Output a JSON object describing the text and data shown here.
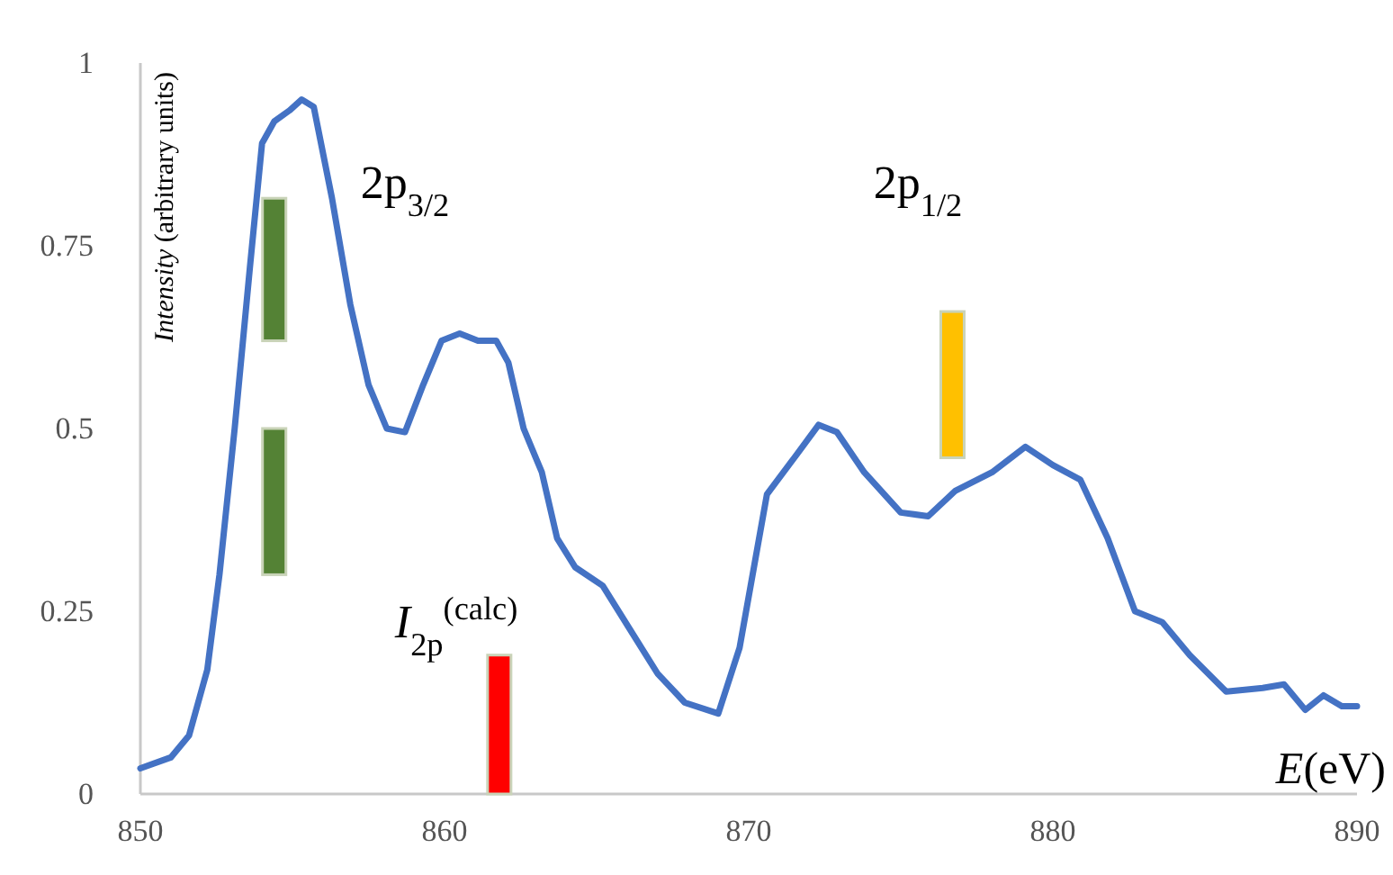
{
  "chart_data": {
    "type": "line",
    "xlabel": "E(eV)",
    "ylabel": "Intensity (arbitrary units)",
    "xlim": [
      850,
      890
    ],
    "xticks": [
      850,
      860,
      870,
      880,
      890
    ],
    "ylim": [
      0,
      1
    ],
    "yticks": [
      0,
      0.25,
      0.5,
      0.75,
      1
    ],
    "grid": false,
    "marker": "none",
    "line_style": "solid",
    "series": [
      {
        "color": "#4472c4",
        "x": [
          850,
          851,
          851.6,
          852.2,
          852.6,
          853.1,
          853.6,
          854.0,
          854.4,
          854.9,
          855.3,
          855.7,
          856.3,
          856.9,
          857.5,
          858.1,
          858.7,
          859.3,
          859.9,
          860.5,
          861.1,
          861.7,
          862.1,
          862.6,
          863.2,
          863.7,
          864.3,
          865.2,
          866.1,
          867.0,
          867.9,
          869.0,
          869.7,
          870.6,
          871.5,
          872.3,
          872.9,
          873.8,
          875.0,
          875.9,
          876.8,
          878.0,
          879.1,
          880.0,
          880.9,
          881.8,
          882.7,
          883.6,
          884.5,
          885.7,
          886.9,
          887.6,
          888.3,
          888.9,
          889.5,
          890
        ],
        "values": [
          0.035,
          0.05,
          0.08,
          0.17,
          0.3,
          0.5,
          0.72,
          0.89,
          0.92,
          0.935,
          0.95,
          0.94,
          0.815,
          0.67,
          0.56,
          0.5,
          0.495,
          0.56,
          0.62,
          0.63,
          0.62,
          0.62,
          0.59,
          0.5,
          0.44,
          0.35,
          0.31,
          0.285,
          0.225,
          0.165,
          0.125,
          0.11,
          0.2,
          0.41,
          0.46,
          0.505,
          0.495,
          0.44,
          0.385,
          0.38,
          0.415,
          0.44,
          0.475,
          0.45,
          0.43,
          0.35,
          0.25,
          0.235,
          0.19,
          0.14,
          0.145,
          0.15,
          0.115,
          0.135,
          0.12,
          0.12
        ]
      },
      {
        "type": "bar",
        "x": [
          854.4,
          861.8,
          876.7
        ],
        "base": [
          0.62,
          0,
          0.46
        ],
        "values": [
          0.195,
          0.19,
          0.2
        ],
        "colors": [
          "#548235",
          "#ff0000",
          "#ffc000"
        ]
      },
      {
        "type": "bar",
        "x": [
          854.4
        ],
        "base": [
          0.3
        ],
        "values": [
          0.2
        ],
        "colors": [
          "#548235"
        ]
      }
    ],
    "annotations": [
      "2p$_{3/2}$",
      "2p$_{1/2}$",
      {
        "text": "I$_{2p}$$^{(calc)}$",
        "x": 861.8,
        "y": 0.19
      }
    ]
  }
}
